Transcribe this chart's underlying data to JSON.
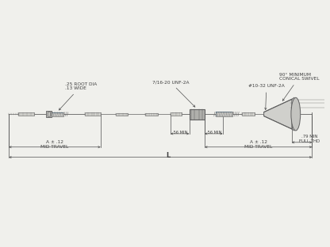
{
  "bg_color": "#f0f0ec",
  "line_color": "#606060",
  "dim_color": "#505050",
  "text_color": "#404040",
  "fig_width": 4.16,
  "fig_height": 3.12,
  "dpi": 100,
  "annotations": {
    "L_label": "L",
    "left_travel_label": "A ± .12\nMID TRAVEL",
    "right_travel_label": "A ± .12\nMID TRAVEL",
    "root_dia_label": ".25 ROOT DIA\n.13 WIDE",
    "unf_left_label": "7/16-20 UNF-2A",
    "unf_right_label": "#10-32 UNF-2A",
    "full_thd_label": ".79 MIN\nFULL THD",
    "conical_label": "90° MINIMUM\nCONICAL SWIVEL",
    "min56_left": ".56 MIN",
    "min56_right": ".56 MIN"
  }
}
